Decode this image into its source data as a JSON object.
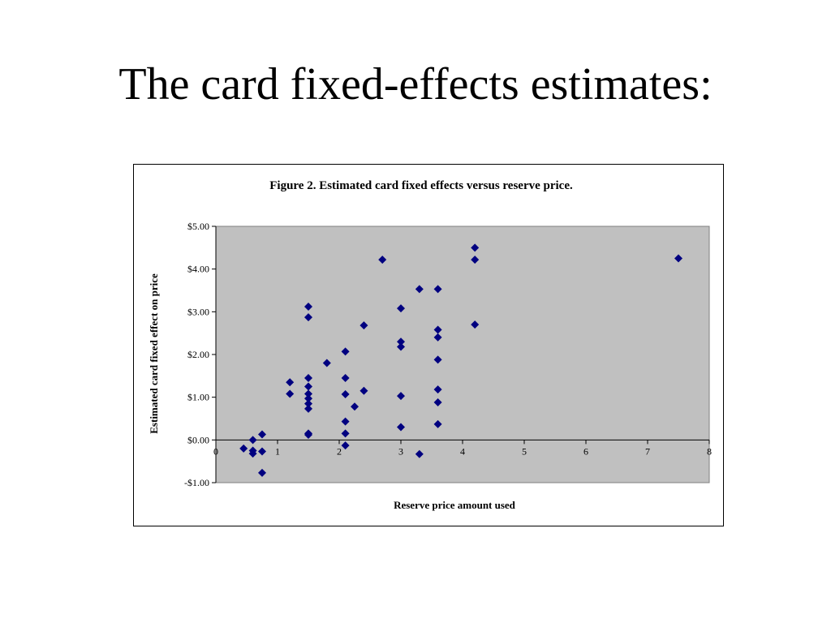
{
  "slide": {
    "title": "The card fixed-effects estimates:"
  },
  "chart_data": {
    "type": "scatter",
    "title": "Figure 2. Estimated card fixed effects versus reserve price.",
    "xlabel": "Reserve price amount used",
    "ylabel": "Estimated card fixed effect on price",
    "xlim": [
      0,
      8
    ],
    "ylim": [
      -1,
      5
    ],
    "x_ticks": [
      0,
      1,
      2,
      3,
      4,
      5,
      6,
      7,
      8
    ],
    "x_tick_labels": [
      "0",
      "1",
      "2",
      "3",
      "4",
      "5",
      "6",
      "7",
      "8"
    ],
    "y_ticks": [
      5,
      4,
      3,
      2,
      1,
      0,
      -1
    ],
    "y_tick_labels": [
      "$5.00",
      "$4.00",
      "$3.00",
      "$2.00",
      "$1.00",
      "$0.00",
      "-$1.00"
    ],
    "plot_background": "#c0c0c0",
    "marker_color": "#000080",
    "grid": false,
    "legend": "none",
    "points": [
      {
        "x": 0.45,
        "y": -0.2
      },
      {
        "x": 0.6,
        "y": 0.0
      },
      {
        "x": 0.6,
        "y": -0.25
      },
      {
        "x": 0.6,
        "y": -0.32
      },
      {
        "x": 0.75,
        "y": 0.13
      },
      {
        "x": 0.75,
        "y": -0.27
      },
      {
        "x": 0.75,
        "y": -0.77
      },
      {
        "x": 1.2,
        "y": 1.35
      },
      {
        "x": 1.2,
        "y": 1.08
      },
      {
        "x": 1.5,
        "y": 3.12
      },
      {
        "x": 1.5,
        "y": 2.87
      },
      {
        "x": 1.5,
        "y": 1.45
      },
      {
        "x": 1.5,
        "y": 1.25
      },
      {
        "x": 1.5,
        "y": 1.08
      },
      {
        "x": 1.5,
        "y": 0.97
      },
      {
        "x": 1.5,
        "y": 0.85
      },
      {
        "x": 1.5,
        "y": 0.73
      },
      {
        "x": 1.5,
        "y": 0.15
      },
      {
        "x": 1.5,
        "y": 0.12
      },
      {
        "x": 1.8,
        "y": 1.8
      },
      {
        "x": 2.1,
        "y": 2.07
      },
      {
        "x": 2.1,
        "y": 1.45
      },
      {
        "x": 2.1,
        "y": 1.07
      },
      {
        "x": 2.1,
        "y": 0.43
      },
      {
        "x": 2.1,
        "y": 0.15
      },
      {
        "x": 2.1,
        "y": -0.13
      },
      {
        "x": 2.25,
        "y": 0.78
      },
      {
        "x": 2.4,
        "y": 2.68
      },
      {
        "x": 2.4,
        "y": 1.15
      },
      {
        "x": 2.7,
        "y": 4.22
      },
      {
        "x": 3.0,
        "y": 3.08
      },
      {
        "x": 3.0,
        "y": 2.3
      },
      {
        "x": 3.0,
        "y": 2.18
      },
      {
        "x": 3.0,
        "y": 1.03
      },
      {
        "x": 3.0,
        "y": 0.3
      },
      {
        "x": 3.3,
        "y": 3.53
      },
      {
        "x": 3.3,
        "y": -0.33
      },
      {
        "x": 3.6,
        "y": 3.53
      },
      {
        "x": 3.6,
        "y": 2.58
      },
      {
        "x": 3.6,
        "y": 2.4
      },
      {
        "x": 3.6,
        "y": 1.88
      },
      {
        "x": 3.6,
        "y": 1.18
      },
      {
        "x": 3.6,
        "y": 0.88
      },
      {
        "x": 3.6,
        "y": 0.37
      },
      {
        "x": 4.2,
        "y": 4.5
      },
      {
        "x": 4.2,
        "y": 4.22
      },
      {
        "x": 4.2,
        "y": 2.7
      },
      {
        "x": 7.5,
        "y": 4.25
      }
    ]
  }
}
